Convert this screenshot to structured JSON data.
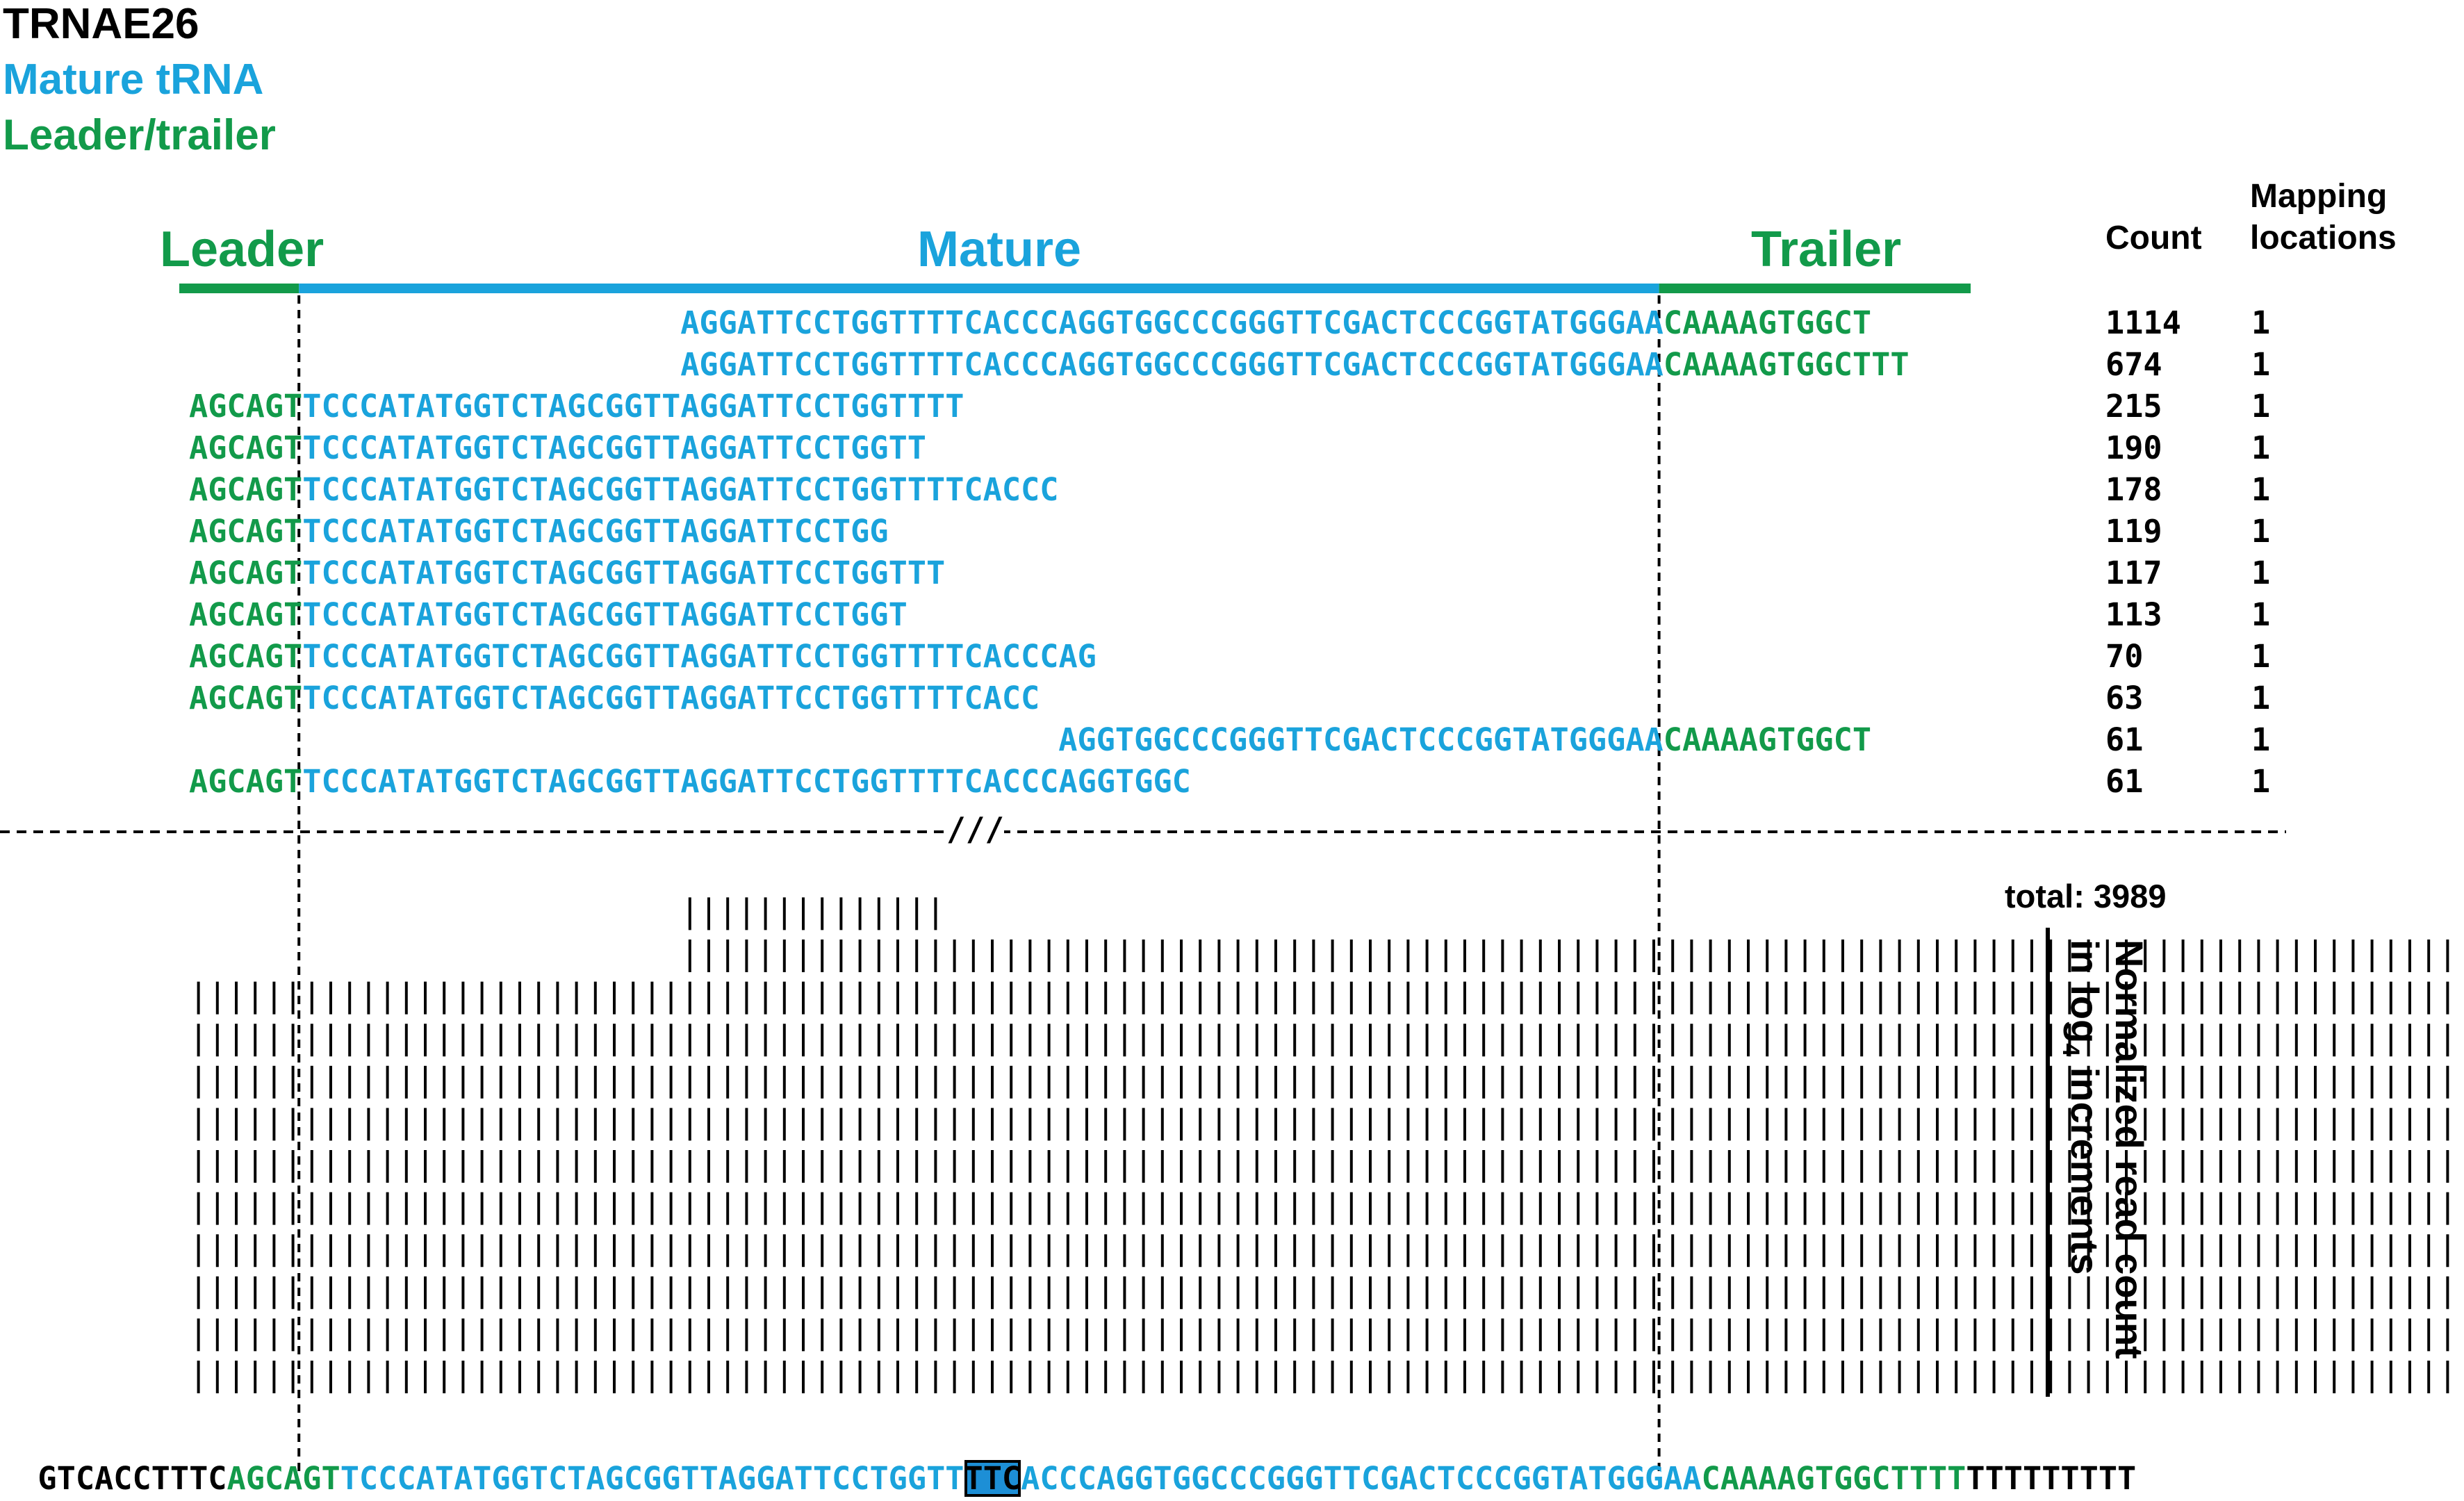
{
  "title": "TRNAE26",
  "legend": {
    "mature": "Mature tRNA",
    "leader_trailer": "Leader/trailer"
  },
  "colors": {
    "mature": "#1aa3dc",
    "leader": "#129a4a",
    "text": "#000000",
    "highlight": "#1d8fd6"
  },
  "segments": {
    "leader": "Leader",
    "mature": "Mature",
    "trailer": "Trailer"
  },
  "headers": {
    "count": "Count",
    "mapping_line1": "Mapping",
    "mapping_line2": "locations"
  },
  "reads": [
    {
      "start": 36,
      "green_prefix": "",
      "blue": "AGGATTCCTGGTTTTCACCCAGGTGGCCCGGGTTCGACTCCCGGTATGGGAA",
      "green_suffix": "CAAAAGTGGCT",
      "count": "1114",
      "locations": "1"
    },
    {
      "start": 36,
      "green_prefix": "",
      "blue": "AGGATTCCTGGTTTTCACCCAGGTGGCCCGGGTTCGACTCCCGGTATGGGAA",
      "green_suffix": "CAAAAGTGGCTTT",
      "count": "674",
      "locations": "1"
    },
    {
      "start": 10,
      "green_prefix": "AGCAGT",
      "blue": "TCCCATATGGTCTAGCGGTTAGGATTCCTGGTTTT",
      "green_suffix": "",
      "count": "215",
      "locations": "1"
    },
    {
      "start": 10,
      "green_prefix": "AGCAGT",
      "blue": "TCCCATATGGTCTAGCGGTTAGGATTCCTGGTT",
      "green_suffix": "",
      "count": "190",
      "locations": "1"
    },
    {
      "start": 10,
      "green_prefix": "AGCAGT",
      "blue": "TCCCATATGGTCTAGCGGTTAGGATTCCTGGTTTTCACCC",
      "green_suffix": "",
      "count": "178",
      "locations": "1"
    },
    {
      "start": 10,
      "green_prefix": "AGCAGT",
      "blue": "TCCCATATGGTCTAGCGGTTAGGATTCCTGG",
      "green_suffix": "",
      "count": "119",
      "locations": "1"
    },
    {
      "start": 10,
      "green_prefix": "AGCAGT",
      "blue": "TCCCATATGGTCTAGCGGTTAGGATTCCTGGTTT",
      "green_suffix": "",
      "count": "117",
      "locations": "1"
    },
    {
      "start": 10,
      "green_prefix": "AGCAGT",
      "blue": "TCCCATATGGTCTAGCGGTTAGGATTCCTGGT",
      "green_suffix": "",
      "count": "113",
      "locations": "1"
    },
    {
      "start": 10,
      "green_prefix": "AGCAGT",
      "blue": "TCCCATATGGTCTAGCGGTTAGGATTCCTGGTTTTCACCCAG",
      "green_suffix": "",
      "count": "70",
      "locations": "1"
    },
    {
      "start": 10,
      "green_prefix": "AGCAGT",
      "blue": "TCCCATATGGTCTAGCGGTTAGGATTCCTGGTTTTCACC",
      "green_suffix": "",
      "count": "63",
      "locations": "1"
    },
    {
      "start": 56,
      "green_prefix": "",
      "blue": "AGGTGGCCCGGGTTCGACTCCCGGTATGGGAA",
      "green_suffix": "CAAAAGTGGCT",
      "count": "61",
      "locations": "1"
    },
    {
      "start": 10,
      "green_prefix": "AGCAGT",
      "blue": "TCCCATATGGTCTAGCGGTTAGGATTCCTGGTTTTCACCCAGGTGGC",
      "green_suffix": "",
      "count": "61",
      "locations": "1"
    }
  ],
  "break_mark": "///",
  "total_label": "total: 3989",
  "axis_label_line1": "Normalized read count",
  "axis_label_line2": "in log",
  "axis_label_sub": "4",
  "axis_label_line3": " increments",
  "reference": {
    "upstream": "GTCACCTTTC",
    "leader": "AGCAGT",
    "mature_before": "TCCCATATGGTCTAGCGGTTAGGATTCCTGGTT",
    "anticodon": "TTC",
    "mature_after": "ACCCAGGTGGCCCGGGTTCGACTCCCGGTATGGGAA",
    "trailer": "CAAAAGTGGCTTTT",
    "downstream": "TTTTTTTTT"
  },
  "coverage_levels": [
    0,
    0,
    0,
    0,
    0,
    0,
    0,
    0,
    0,
    0,
    10,
    10,
    10,
    10,
    10,
    10,
    10,
    10,
    10,
    10,
    10,
    10,
    10,
    10,
    10,
    10,
    10,
    10,
    10,
    10,
    10,
    10,
    10,
    10,
    10,
    10,
    12,
    12,
    12,
    12,
    12,
    12,
    12,
    12,
    12,
    12,
    12,
    12,
    12,
    12,
    11,
    11,
    11,
    11,
    11,
    11,
    11,
    11,
    11,
    11,
    11,
    11,
    11,
    11,
    11,
    11,
    11,
    11,
    11,
    11,
    11,
    11,
    11,
    11,
    11,
    11,
    11,
    11,
    11,
    11,
    11,
    11,
    11,
    11,
    11,
    11,
    11,
    11,
    11,
    11,
    11,
    11,
    11,
    11,
    11,
    11,
    11,
    11,
    11,
    11,
    11,
    11,
    11,
    11,
    11,
    11,
    11,
    11,
    11,
    11,
    11,
    11,
    11,
    11,
    11,
    11,
    11,
    11,
    11,
    11,
    11,
    11,
    11,
    11,
    11,
    11,
    11,
    11,
    11,
    11,
    11,
    11,
    11,
    11,
    11,
    11,
    11,
    11,
    11,
    11,
    11,
    11
  ]
}
